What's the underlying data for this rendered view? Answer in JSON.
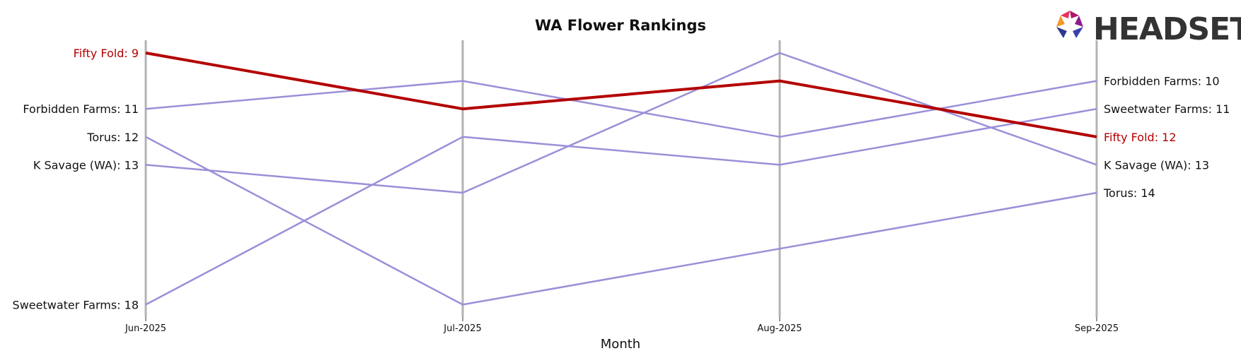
{
  "chart_data": {
    "type": "line",
    "title": "WA Flower Rankings",
    "xlabel": "Month",
    "ylabel": "",
    "categories": [
      "Jun-2025",
      "Jul-2025",
      "Aug-2025",
      "Sep-2025"
    ],
    "y_inverted": true,
    "ylim": [
      9,
      18
    ],
    "grid": "vertical lines at each month",
    "highlight_color": "#b30000",
    "series_color": "#9b8fd8",
    "series": [
      {
        "name": "Fifty Fold",
        "values": [
          9,
          11,
          10,
          12
        ],
        "highlight": true
      },
      {
        "name": "Forbidden Farms",
        "values": [
          11,
          10,
          12,
          10
        ]
      },
      {
        "name": "Torus",
        "values": [
          12,
          18,
          16,
          14
        ]
      },
      {
        "name": "K Savage (WA)",
        "values": [
          13,
          14,
          9,
          13
        ]
      },
      {
        "name": "Sweetwater Farms",
        "values": [
          18,
          12,
          13,
          11
        ]
      }
    ],
    "left_labels": [
      {
        "text": "Fifty Fold: 9",
        "rank": 9,
        "highlight": true
      },
      {
        "text": "Forbidden Farms: 11",
        "rank": 11
      },
      {
        "text": "Torus: 12",
        "rank": 12
      },
      {
        "text": "K Savage (WA): 13",
        "rank": 13
      },
      {
        "text": "Sweetwater Farms: 18",
        "rank": 18
      }
    ],
    "right_labels": [
      {
        "text": "Forbidden Farms: 10",
        "rank": 10
      },
      {
        "text": "Sweetwater Farms: 11",
        "rank": 11
      },
      {
        "text": "Fifty Fold: 12",
        "rank": 12,
        "highlight": true
      },
      {
        "text": "K Savage (WA): 13",
        "rank": 13
      },
      {
        "text": "Torus: 14",
        "rank": 14
      }
    ]
  },
  "logo": {
    "text": "HEADSET"
  }
}
